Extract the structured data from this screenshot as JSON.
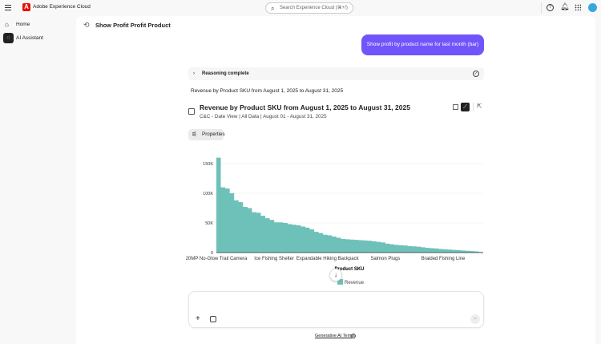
{
  "app": {
    "title": "Adobe Experience Cloud",
    "logo_letter": "A",
    "search_placeholder": "Search Experience Cloud (⌘+/)"
  },
  "sidebar": {
    "items": [
      {
        "label": "Home",
        "icon": "home-icon"
      },
      {
        "label": "AI Assistant",
        "icon": "ai-assistant-icon",
        "active": true
      }
    ]
  },
  "header": {
    "title": "Show Profit Profit Product"
  },
  "chat": {
    "user_message": "Show profit by product name for last month (bar)",
    "reasoning_label": "Reasoning complete",
    "response_text": "Revenue by Product SKU from August 1, 2025 to August 31, 2025",
    "card_title": "Revenue by Product SKU from August 1, 2025 to August 31, 2025",
    "card_subtitle": "C&C - Date View | All Data | August 01 - August 31, 2025",
    "properties_label": "Properties"
  },
  "footer": {
    "terms_link": "Generative AI Terms"
  },
  "colors": {
    "accent": "#7155fa",
    "series": "#6ec1b8",
    "logo": "#eb1000"
  },
  "chart_data": {
    "type": "area",
    "xlabel": "Product SKU",
    "ylabel": "",
    "ylim": [
      0,
      150000
    ],
    "y_ticks": [
      0,
      50000,
      100000,
      150000
    ],
    "y_tick_labels": [
      "0",
      "50K",
      "100K",
      "150K"
    ],
    "x_tick_labels": [
      {
        "index": 0,
        "label": "20MP No-Glow Trail Camera"
      },
      {
        "index": 13,
        "label": "Ice Fishing Shelter"
      },
      {
        "index": 25,
        "label": "Expandable Hiking Backpack"
      },
      {
        "index": 38,
        "label": "Salmon Plugs"
      },
      {
        "index": 51,
        "label": "Braided Fishing Line"
      }
    ],
    "grid": true,
    "legend_position": "bottom",
    "series": [
      {
        "name": "Revenue",
        "values": [
          160000,
          110000,
          108000,
          100000,
          88000,
          85000,
          77000,
          75000,
          68000,
          67000,
          62000,
          58000,
          55000,
          51000,
          51000,
          50000,
          48000,
          47000,
          46000,
          44000,
          42000,
          39000,
          35000,
          33000,
          30000,
          29000,
          27000,
          25000,
          23000,
          22500,
          22000,
          21500,
          21000,
          20500,
          20000,
          19000,
          18000,
          17000,
          15000,
          14000,
          13000,
          12500,
          12000,
          11000,
          10500,
          10000,
          9000,
          8000,
          7500,
          7000,
          6000,
          5500,
          5000,
          4500,
          4000,
          3500,
          3000,
          2500,
          2000,
          1000,
          0
        ]
      }
    ]
  }
}
